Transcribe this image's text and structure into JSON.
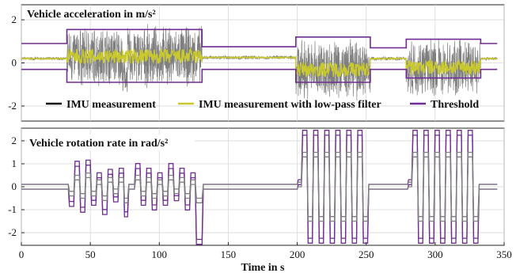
{
  "chart_data": [
    {
      "type": "line",
      "title": "Vehicle acceleration in m/s²",
      "xlim": [
        0,
        350
      ],
      "ylim": [
        -2.7,
        2.7
      ],
      "yticks": [
        "-2",
        "0",
        "2"
      ],
      "ytick_values": [
        -2,
        0,
        2
      ],
      "grid": true,
      "legend_position": "bottom",
      "series": [
        {
          "name": "IMU measurement",
          "color": "#7f7f7f",
          "segments": [
            {
              "x": [
                0,
                33
              ],
              "center": 0.2,
              "amp": 0.08
            },
            {
              "x": [
                33,
                73
              ],
              "center": 0.3,
              "amp": 1.5
            },
            {
              "x": [
                73,
                77
              ],
              "center": -0.6,
              "amp": 0.9
            },
            {
              "x": [
                77,
                131
              ],
              "center": 0.3,
              "amp": 1.5
            },
            {
              "x": [
                131,
                199
              ],
              "center": 0.25,
              "amp": 0.1
            },
            {
              "x": [
                199,
                253
              ],
              "center": -0.3,
              "amp": 1.5
            },
            {
              "x": [
                253,
                279
              ],
              "center": 0.2,
              "amp": 0.1
            },
            {
              "x": [
                279,
                333
              ],
              "center": -0.2,
              "amp": 1.4
            },
            {
              "x": [
                333,
                345
              ],
              "center": 0.2,
              "amp": 0.08
            }
          ]
        },
        {
          "name": "IMU measurement with low-pass filter",
          "color": "#c9c92e",
          "segments": [
            {
              "x": [
                0,
                33
              ],
              "center": 0.2,
              "amp": 0.03
            },
            {
              "x": [
                33,
                131
              ],
              "center": 0.3,
              "amp": 0.35
            },
            {
              "x": [
                131,
                199
              ],
              "center": 0.25,
              "amp": 0.03
            },
            {
              "x": [
                199,
                253
              ],
              "center": -0.3,
              "amp": 0.35
            },
            {
              "x": [
                253,
                279
              ],
              "center": 0.2,
              "amp": 0.03
            },
            {
              "x": [
                279,
                333
              ],
              "center": -0.2,
              "amp": 0.35
            },
            {
              "x": [
                333,
                345
              ],
              "center": 0.2,
              "amp": 0.03
            }
          ]
        },
        {
          "name": "Threshold",
          "color": "#6e2d91",
          "upper": [
            [
              0,
              0.9
            ],
            [
              33,
              0.9
            ],
            [
              33,
              1.55
            ],
            [
              131,
              1.55
            ],
            [
              131,
              0.75
            ],
            [
              199,
              0.75
            ],
            [
              199,
              1.2
            ],
            [
              253,
              1.2
            ],
            [
              253,
              0.7
            ],
            [
              279,
              0.7
            ],
            [
              279,
              1.1
            ],
            [
              333,
              1.1
            ],
            [
              333,
              0.9
            ],
            [
              345,
              0.9
            ]
          ],
          "lower": [
            [
              0,
              -0.3
            ],
            [
              33,
              -0.3
            ],
            [
              33,
              -0.9
            ],
            [
              131,
              -0.9
            ],
            [
              131,
              -0.3
            ],
            [
              199,
              -0.3
            ],
            [
              199,
              -0.9
            ],
            [
              253,
              -0.9
            ],
            [
              253,
              -0.3
            ],
            [
              279,
              -0.3
            ],
            [
              279,
              -0.7
            ],
            [
              333,
              -0.7
            ],
            [
              333,
              -0.3
            ],
            [
              345,
              -0.3
            ]
          ]
        }
      ],
      "legend": [
        {
          "label": "IMU measurement",
          "color": "#111111"
        },
        {
          "label": "IMU measurement with low-pass filter",
          "color": "#c9c92e"
        },
        {
          "label": "Threshold",
          "color": "#6e2d91"
        }
      ]
    },
    {
      "type": "line",
      "title": "Vehicle rotation rate in rad/s²",
      "xlim": [
        0,
        350
      ],
      "ylim": [
        -2.55,
        2.55
      ],
      "yticks": [
        "-2",
        "-1",
        "0",
        "1",
        "2"
      ],
      "ytick_values": [
        -2,
        -1,
        0,
        1,
        2
      ],
      "xticks": [
        "0",
        "50",
        "100",
        "150",
        "200",
        "250",
        "300",
        "350"
      ],
      "xtick_values": [
        0,
        50,
        100,
        150,
        200,
        250,
        300,
        350
      ],
      "xlabel": "Time in s",
      "grid": true,
      "series": [
        {
          "name": "IMU measurement",
          "color": "#7f7f7f",
          "levels": [
            [
              0,
              0
            ],
            [
              34,
              -0.3
            ],
            [
              38,
              0.4
            ],
            [
              42,
              -0.4
            ],
            [
              46,
              0.5
            ],
            [
              50,
              -0.3
            ],
            [
              54,
              0.2
            ],
            [
              58,
              -0.5
            ],
            [
              62,
              0.3
            ],
            [
              66,
              -0.2
            ],
            [
              70,
              0.3
            ],
            [
              74,
              -0.6
            ],
            [
              77,
              0
            ],
            [
              82,
              0.4
            ],
            [
              86,
              -0.3
            ],
            [
              90,
              0.3
            ],
            [
              94,
              -0.4
            ],
            [
              98,
              0.2
            ],
            [
              102,
              -0.3
            ],
            [
              106,
              0.4
            ],
            [
              110,
              -0.2
            ],
            [
              114,
              0.3
            ],
            [
              118,
              -0.4
            ],
            [
              122,
              0.2
            ],
            [
              126,
              -0.6
            ],
            [
              131,
              0
            ],
            [
              200,
              0.1
            ],
            [
              203,
              1.4
            ],
            [
              207,
              -1.4
            ],
            [
              211,
              1.4
            ],
            [
              215,
              -1.4
            ],
            [
              219,
              1.4
            ],
            [
              223,
              -1.4
            ],
            [
              227,
              1.4
            ],
            [
              231,
              -1.4
            ],
            [
              235,
              1.4
            ],
            [
              239,
              -1.4
            ],
            [
              243,
              1.4
            ],
            [
              247,
              -1.4
            ],
            [
              251,
              0
            ],
            [
              280,
              0.1
            ],
            [
              283,
              1.4
            ],
            [
              287,
              -1.4
            ],
            [
              291,
              1.4
            ],
            [
              295,
              -1.4
            ],
            [
              299,
              1.4
            ],
            [
              303,
              -1.4
            ],
            [
              307,
              1.4
            ],
            [
              311,
              -1.4
            ],
            [
              315,
              1.4
            ],
            [
              319,
              -1.4
            ],
            [
              323,
              1.4
            ],
            [
              327,
              -1.4
            ],
            [
              331,
              0
            ]
          ]
        },
        {
          "name": "Threshold",
          "color": "#6e2d91",
          "levels": [
            [
              0,
              0
            ],
            [
              34,
              -0.75
            ],
            [
              38,
              1.0
            ],
            [
              42,
              -1.0
            ],
            [
              46,
              1.05
            ],
            [
              50,
              -0.7
            ],
            [
              54,
              0.5
            ],
            [
              58,
              -1.1
            ],
            [
              62,
              0.65
            ],
            [
              66,
              -0.55
            ],
            [
              70,
              0.7
            ],
            [
              74,
              -1.2
            ],
            [
              77,
              0
            ],
            [
              82,
              0.9
            ],
            [
              86,
              -0.7
            ],
            [
              90,
              0.7
            ],
            [
              94,
              -0.9
            ],
            [
              98,
              0.5
            ],
            [
              102,
              -0.7
            ],
            [
              106,
              0.9
            ],
            [
              110,
              -0.5
            ],
            [
              114,
              0.7
            ],
            [
              118,
              -0.9
            ],
            [
              122,
              0.5
            ],
            [
              126,
              -2.4
            ],
            [
              131,
              0
            ],
            [
              200,
              0.2
            ],
            [
              203,
              2.35
            ],
            [
              207,
              -2.35
            ],
            [
              211,
              2.35
            ],
            [
              215,
              -2.35
            ],
            [
              219,
              2.35
            ],
            [
              223,
              -2.35
            ],
            [
              227,
              2.35
            ],
            [
              231,
              -2.35
            ],
            [
              235,
              2.35
            ],
            [
              239,
              -2.35
            ],
            [
              243,
              2.35
            ],
            [
              247,
              -2.35
            ],
            [
              251,
              0
            ],
            [
              280,
              0.2
            ],
            [
              283,
              2.35
            ],
            [
              287,
              -2.35
            ],
            [
              291,
              2.35
            ],
            [
              295,
              -2.35
            ],
            [
              299,
              2.35
            ],
            [
              303,
              -2.35
            ],
            [
              307,
              2.35
            ],
            [
              311,
              -2.35
            ],
            [
              315,
              2.35
            ],
            [
              319,
              -2.35
            ],
            [
              323,
              2.35
            ],
            [
              327,
              -2.35
            ],
            [
              331,
              0
            ]
          ]
        }
      ]
    }
  ]
}
